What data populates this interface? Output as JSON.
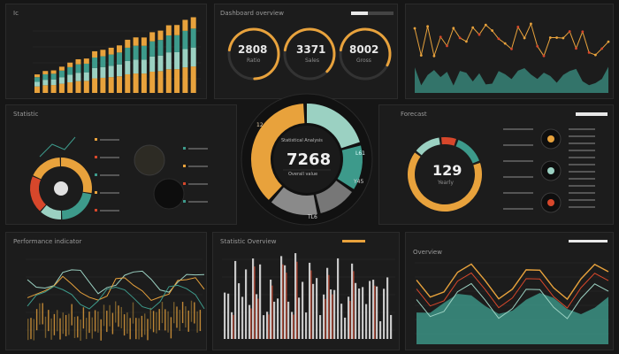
{
  "colors": {
    "orange": "#e8a23c",
    "teal": "#3d9a8b",
    "mint": "#9bd1c2",
    "red": "#d7472b",
    "gray": "#6f6f6f",
    "dark": "#1c1c1c"
  },
  "top_left": {
    "title": "Ic"
  },
  "top_mid": {
    "title": "Dashboard overview",
    "gauges": [
      {
        "value": "2808",
        "sub": "Ratio",
        "fill": 0.72,
        "color": "#e8a23c"
      },
      {
        "value": "3371",
        "sub": "Sales",
        "fill": 0.6,
        "color": "#e8a23c"
      },
      {
        "value": "8002",
        "sub": "Gross",
        "fill": 0.55,
        "color": "#e8a23c"
      }
    ]
  },
  "middle_left": {
    "title": "Statistic"
  },
  "center_ring": {
    "value": "7268",
    "line1": "Statistical Analysis",
    "line2": "Overall value",
    "l1": "12",
    "l2": "L61",
    "l3": "Y45",
    "l4": "TL6"
  },
  "middle_right": {
    "title": "Forecast",
    "value": "129",
    "sub": "Yearly"
  },
  "bottom_left": {
    "title": "Performance indicator"
  },
  "bottom_mid": {
    "title": "Statistic Overview"
  },
  "bottom_right": {
    "title": "Overview"
  }
}
